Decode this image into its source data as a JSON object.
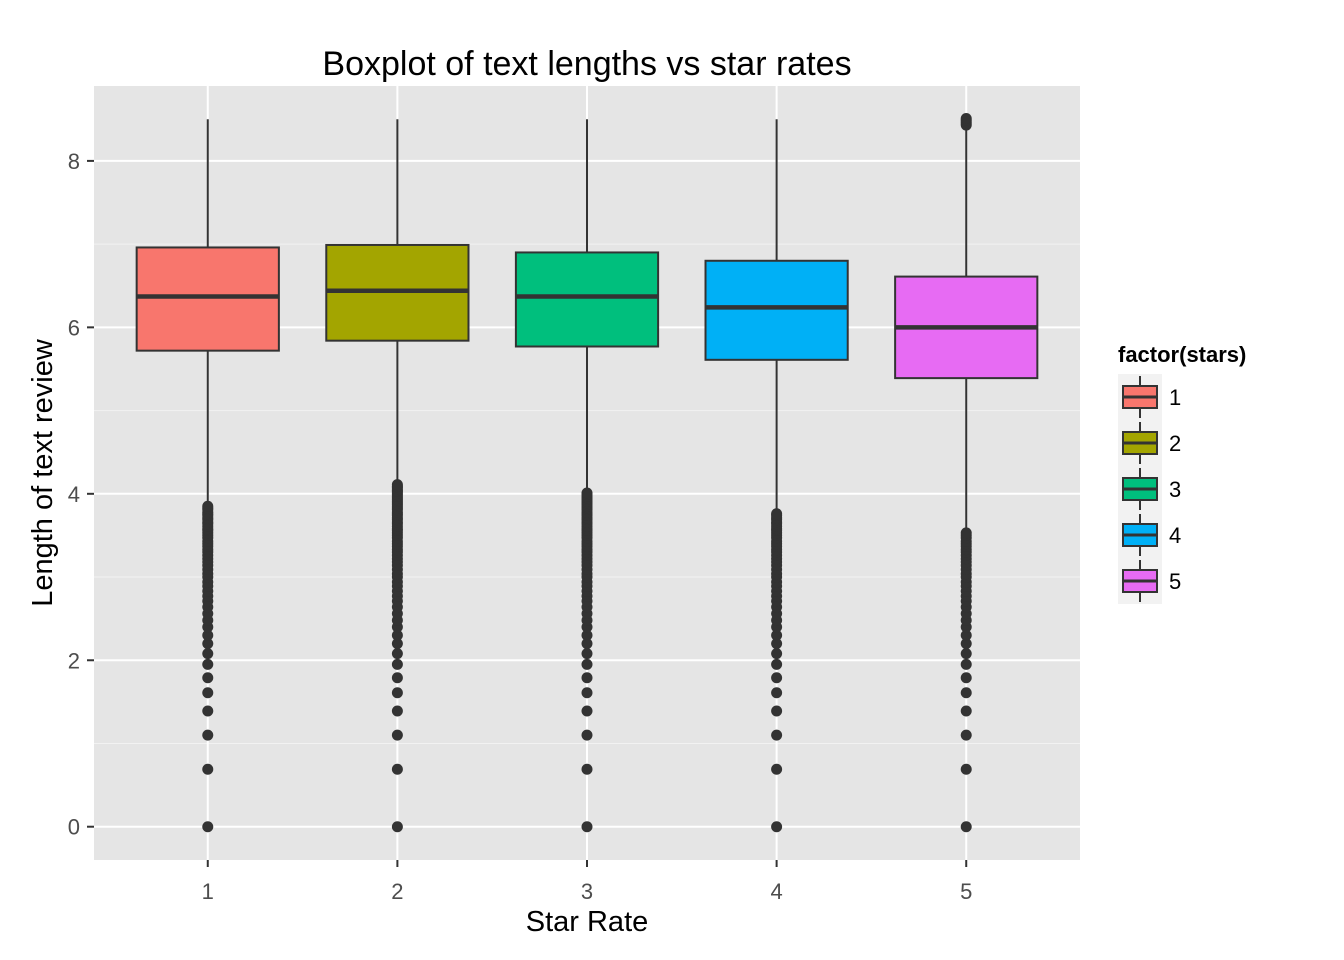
{
  "chart_data": {
    "type": "boxplot",
    "title": "Boxplot of text lengths vs star rates",
    "xlabel": "Star Rate",
    "ylabel": "Length of text review",
    "categories": [
      "1",
      "2",
      "3",
      "4",
      "5"
    ],
    "ylim": [
      -0.4,
      8.9
    ],
    "yticks": [
      0,
      2,
      4,
      6,
      8
    ],
    "grid": true,
    "legend": {
      "title": "factor(stars)",
      "position": "right",
      "entries": [
        "1",
        "2",
        "3",
        "4",
        "5"
      ]
    },
    "colors": [
      "#F8766D",
      "#A3A500",
      "#00BF7D",
      "#00B0F6",
      "#E76BF3"
    ],
    "series": [
      {
        "category": "1",
        "whisker_low": 3.9,
        "q1": 5.72,
        "median": 6.37,
        "q3": 6.96,
        "whisker_high": 8.5,
        "outliers": [
          0,
          0.69,
          1.1,
          1.39,
          1.61,
          1.79,
          1.95,
          2.08,
          2.2,
          2.3,
          2.4,
          2.48,
          2.56,
          2.64,
          2.71,
          2.77,
          2.83,
          2.89,
          2.94,
          3.0,
          3.04,
          3.09,
          3.14,
          3.18,
          3.22,
          3.26,
          3.3,
          3.33,
          3.37,
          3.4,
          3.43,
          3.47,
          3.5,
          3.53,
          3.56,
          3.58,
          3.61,
          3.64,
          3.66,
          3.69,
          3.71,
          3.74,
          3.76,
          3.78,
          3.81,
          3.83,
          3.85
        ]
      },
      {
        "category": "2",
        "whisker_low": 4.15,
        "q1": 5.84,
        "median": 6.44,
        "q3": 6.99,
        "whisker_high": 8.5,
        "outliers": [
          0,
          0.69,
          1.1,
          1.39,
          1.61,
          1.79,
          1.95,
          2.08,
          2.2,
          2.3,
          2.4,
          2.48,
          2.56,
          2.64,
          2.71,
          2.77,
          2.83,
          2.89,
          2.94,
          3.0,
          3.04,
          3.09,
          3.14,
          3.18,
          3.22,
          3.26,
          3.3,
          3.33,
          3.37,
          3.4,
          3.43,
          3.47,
          3.5,
          3.53,
          3.56,
          3.58,
          3.61,
          3.64,
          3.66,
          3.69,
          3.71,
          3.74,
          3.76,
          3.78,
          3.81,
          3.83,
          3.85,
          3.87,
          3.89,
          3.91,
          3.93,
          3.95,
          3.97,
          3.99,
          4.01,
          4.03,
          4.04,
          4.06,
          4.08,
          4.09,
          4.11
        ]
      },
      {
        "category": "3",
        "whisker_low": 4.05,
        "q1": 5.77,
        "median": 6.37,
        "q3": 6.9,
        "whisker_high": 8.5,
        "outliers": [
          0,
          0.69,
          1.1,
          1.39,
          1.61,
          1.79,
          1.95,
          2.08,
          2.2,
          2.3,
          2.4,
          2.48,
          2.56,
          2.64,
          2.71,
          2.77,
          2.83,
          2.89,
          2.94,
          3.0,
          3.04,
          3.09,
          3.14,
          3.18,
          3.22,
          3.26,
          3.3,
          3.33,
          3.37,
          3.4,
          3.43,
          3.47,
          3.5,
          3.53,
          3.56,
          3.58,
          3.61,
          3.64,
          3.66,
          3.69,
          3.71,
          3.74,
          3.76,
          3.78,
          3.81,
          3.83,
          3.85,
          3.87,
          3.89,
          3.91,
          3.93,
          3.95,
          3.97,
          3.99,
          4.01
        ]
      },
      {
        "category": "4",
        "whisker_low": 3.8,
        "q1": 5.61,
        "median": 6.24,
        "q3": 6.8,
        "whisker_high": 8.5,
        "outliers": [
          0,
          0.69,
          1.1,
          1.39,
          1.61,
          1.79,
          1.95,
          2.08,
          2.2,
          2.3,
          2.4,
          2.48,
          2.56,
          2.64,
          2.71,
          2.77,
          2.83,
          2.89,
          2.94,
          3.0,
          3.04,
          3.09,
          3.14,
          3.18,
          3.22,
          3.26,
          3.3,
          3.33,
          3.37,
          3.4,
          3.43,
          3.47,
          3.5,
          3.53,
          3.56,
          3.58,
          3.61,
          3.64,
          3.66,
          3.69,
          3.71,
          3.74,
          3.76
        ]
      },
      {
        "category": "5",
        "whisker_low": 3.55,
        "q1": 5.39,
        "median": 6.0,
        "q3": 6.61,
        "whisker_high": 8.4,
        "outliers": [
          0,
          0.69,
          1.1,
          1.39,
          1.61,
          1.79,
          1.95,
          2.08,
          2.2,
          2.3,
          2.4,
          2.48,
          2.56,
          2.64,
          2.71,
          2.77,
          2.83,
          2.89,
          2.94,
          3.0,
          3.04,
          3.09,
          3.14,
          3.18,
          3.22,
          3.26,
          3.3,
          3.33,
          3.37,
          3.4,
          3.43,
          3.47,
          3.5,
          3.53,
          8.43,
          8.45,
          8.47,
          8.49,
          8.51
        ]
      }
    ]
  }
}
